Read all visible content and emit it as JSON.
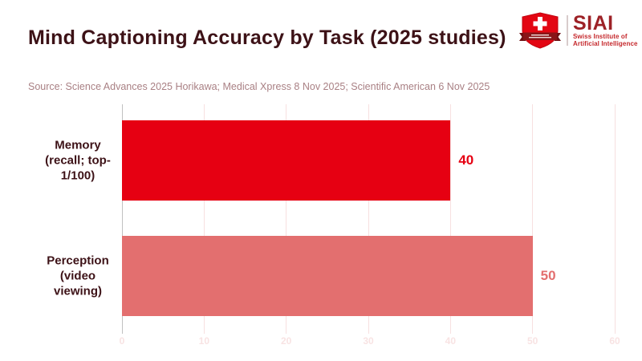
{
  "header": {
    "title": "Mind Captioning Accuracy by Task (2025 studies)",
    "source": "Source: Science Advances 2025 Horikawa; Medical Xpress 8 Nov 2025; Scientific American 6 Nov 2025"
  },
  "logo": {
    "acronym": "SIAI",
    "org_line1": "Swiss Institute of",
    "org_line2": "Artificial Intelligence"
  },
  "chart_data": {
    "type": "bar",
    "orientation": "horizontal",
    "title": "Mind Captioning Accuracy by Task (2025 studies)",
    "categories": [
      "Memory (recall; top-1/100)",
      "Perception (video viewing)"
    ],
    "category_display_lines": [
      [
        "Memory",
        "(recall; top-",
        "1/100)"
      ],
      [
        "Perception",
        "(video",
        "viewing)"
      ]
    ],
    "values": [
      40,
      50
    ],
    "value_labels": [
      "40",
      "50"
    ],
    "bar_colors": [
      "#e60012",
      "#e36f6f"
    ],
    "value_label_colors": [
      "#e60012",
      "#e36f6f"
    ],
    "xlim": [
      0,
      60
    ],
    "xticks": [
      0,
      10,
      20,
      30,
      40,
      50,
      60
    ],
    "grid": true,
    "legend": "none"
  },
  "colors": {
    "background": "#ffffff",
    "title": "#3d1217",
    "source": "#a98084",
    "category_label": "#3d1217",
    "gridline": "#f7e0e0",
    "zero_line": "#c0c0c0",
    "tick_label": "#f8e3e3",
    "logo_shield_red": "#e30613",
    "logo_banner_dark": "#8a1518",
    "logo_acronym_red": "#9d2227",
    "logo_org_red": "#c5282c",
    "logo_divider": "#d8cccc"
  }
}
